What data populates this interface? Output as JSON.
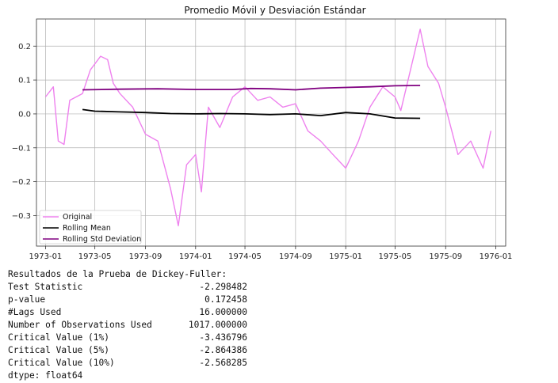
{
  "chart_data": {
    "type": "line",
    "title": "Promedio Móvil y Desviación Estándar",
    "xlabel": "",
    "ylabel": "",
    "x_ticks": [
      "1973-01",
      "1973-05",
      "1973-09",
      "1974-01",
      "1974-05",
      "1974-09",
      "1975-01",
      "1975-05",
      "1975-09",
      "1976-01"
    ],
    "y_ticks": [
      "0.2",
      "0.1",
      "0.0",
      "−0.1",
      "−0.2",
      "−0.3"
    ],
    "xlim": [
      "1972-12-10",
      "1976-01-25"
    ],
    "ylim": [
      -0.39,
      0.28
    ],
    "grid": true,
    "legend_position": "lower-left",
    "series": [
      {
        "name": "Original",
        "color": "#ee82ee",
        "points": [
          [
            "1973-01-01",
            0.05
          ],
          [
            "1973-01-20",
            0.08
          ],
          [
            "1973-02-01",
            -0.08
          ],
          [
            "1973-02-15",
            -0.09
          ],
          [
            "1973-03-01",
            0.04
          ],
          [
            "1973-04-01",
            0.06
          ],
          [
            "1973-04-20",
            0.13
          ],
          [
            "1973-05-15",
            0.17
          ],
          [
            "1973-06-01",
            0.16
          ],
          [
            "1973-06-15",
            0.09
          ],
          [
            "1973-07-01",
            0.06
          ],
          [
            "1973-08-01",
            0.02
          ],
          [
            "1973-09-01",
            -0.06
          ],
          [
            "1973-10-01",
            -0.08
          ],
          [
            "1973-11-01",
            -0.22
          ],
          [
            "1973-11-20",
            -0.33
          ],
          [
            "1973-12-10",
            -0.15
          ],
          [
            "1974-01-01",
            -0.12
          ],
          [
            "1974-01-15",
            -0.23
          ],
          [
            "1974-02-01",
            0.02
          ],
          [
            "1974-03-01",
            -0.04
          ],
          [
            "1974-04-01",
            0.05
          ],
          [
            "1974-05-01",
            0.08
          ],
          [
            "1974-06-01",
            0.04
          ],
          [
            "1974-07-01",
            0.05
          ],
          [
            "1974-08-01",
            0.02
          ],
          [
            "1974-09-01",
            0.03
          ],
          [
            "1974-10-01",
            -0.05
          ],
          [
            "1974-11-01",
            -0.08
          ],
          [
            "1974-12-01",
            -0.12
          ],
          [
            "1975-01-01",
            -0.16
          ],
          [
            "1975-02-01",
            -0.08
          ],
          [
            "1975-03-01",
            0.02
          ],
          [
            "1975-04-01",
            0.08
          ],
          [
            "1975-05-01",
            0.05
          ],
          [
            "1975-05-15",
            0.01
          ],
          [
            "1975-07-01",
            0.25
          ],
          [
            "1975-07-20",
            0.14
          ],
          [
            "1975-08-15",
            0.09
          ],
          [
            "1975-09-01",
            0.02
          ],
          [
            "1975-10-01",
            -0.12
          ],
          [
            "1975-11-01",
            -0.08
          ],
          [
            "1975-12-01",
            -0.16
          ],
          [
            "1975-12-20",
            -0.05
          ]
        ]
      },
      {
        "name": "Rolling Mean",
        "color": "#000000",
        "points": [
          [
            "1973-04-01",
            0.013
          ],
          [
            "1973-05-01",
            0.008
          ],
          [
            "1973-07-01",
            0.006
          ],
          [
            "1973-09-01",
            0.004
          ],
          [
            "1973-11-01",
            0.001
          ],
          [
            "1974-01-01",
            0.0
          ],
          [
            "1974-03-01",
            0.001
          ],
          [
            "1974-05-01",
            0.0
          ],
          [
            "1974-07-01",
            -0.002
          ],
          [
            "1974-09-01",
            0.0
          ],
          [
            "1974-11-01",
            -0.005
          ],
          [
            "1975-01-01",
            0.004
          ],
          [
            "1975-03-01",
            0.0
          ],
          [
            "1975-05-01",
            -0.012
          ],
          [
            "1975-07-01",
            -0.013
          ]
        ]
      },
      {
        "name": "Rolling Std Deviation",
        "color": "#800080",
        "points": [
          [
            "1973-04-01",
            0.071
          ],
          [
            "1973-07-01",
            0.073
          ],
          [
            "1973-10-01",
            0.074
          ],
          [
            "1974-01-01",
            0.072
          ],
          [
            "1974-04-01",
            0.072
          ],
          [
            "1974-05-15",
            0.075
          ],
          [
            "1974-07-01",
            0.074
          ],
          [
            "1974-09-01",
            0.071
          ],
          [
            "1974-11-01",
            0.076
          ],
          [
            "1975-01-01",
            0.078
          ],
          [
            "1975-03-01",
            0.08
          ],
          [
            "1975-05-01",
            0.083
          ],
          [
            "1975-07-01",
            0.084
          ]
        ]
      }
    ]
  },
  "output": {
    "heading": "Resultados de la Prueba de Dickey-Fuller:",
    "rows": [
      {
        "label": "Test Statistic",
        "value": "-2.298482"
      },
      {
        "label": "p-value",
        "value": "0.172458"
      },
      {
        "label": "#Lags Used",
        "value": "16.000000"
      },
      {
        "label": "Number of Observations Used",
        "value": "1017.000000"
      },
      {
        "label": "Critical Value (1%)",
        "value": "-3.436796"
      },
      {
        "label": "Critical Value (5%)",
        "value": "-2.864386"
      },
      {
        "label": "Critical Value (10%)",
        "value": "-2.568285"
      }
    ],
    "footer": "dtype: float64"
  }
}
